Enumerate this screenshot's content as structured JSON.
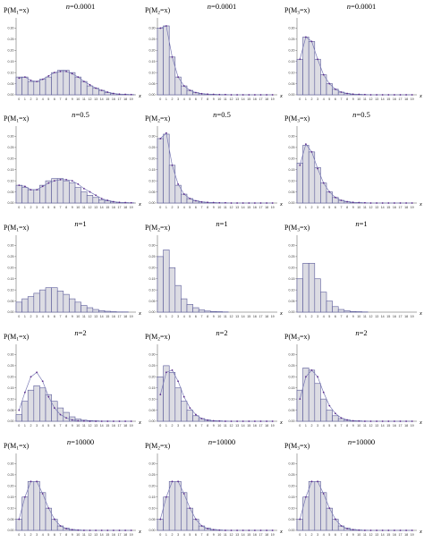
{
  "layout_grid": {
    "rows": 5,
    "cols": 3
  },
  "charts": [
    {
      "type": "bar",
      "title": "n=0.0001",
      "ylabel": "P(M1=x)",
      "xlabel": "x",
      "yticks": [
        "0.30",
        "0.25",
        "0.20",
        "0.15",
        "0.10",
        "0.05",
        "0.00"
      ],
      "ylim": [
        0,
        0.33
      ],
      "categories": [
        "0",
        "1",
        "2",
        "3",
        "4",
        "5",
        "6",
        "7",
        "8",
        "9",
        "10",
        "11",
        "12",
        "13",
        "14",
        "15",
        "16",
        "17",
        "18",
        "19"
      ],
      "values": [
        0.08,
        0.08,
        0.06,
        0.06,
        0.07,
        0.08,
        0.1,
        0.11,
        0.11,
        0.1,
        0.08,
        0.06,
        0.04,
        0.03,
        0.02,
        0.01,
        0.005,
        0.003,
        0.002,
        0.001
      ],
      "points": [
        0.075,
        0.08,
        0.065,
        0.06,
        0.07,
        0.085,
        0.1,
        0.105,
        0.105,
        0.095,
        0.08,
        0.06,
        0.045,
        0.03,
        0.02,
        0.012,
        0.006,
        0.003,
        0.002,
        0.001
      ]
    },
    {
      "type": "bar",
      "title": "n=0.0001",
      "ylabel": "P(M2=x)",
      "xlabel": "x",
      "yticks": [
        "0.30",
        "0.25",
        "0.20",
        "0.15",
        "0.10",
        "0.05",
        "0.00"
      ],
      "ylim": [
        0,
        0.33
      ],
      "categories": [
        "0",
        "1",
        "2",
        "3",
        "4",
        "5",
        "6",
        "7",
        "8",
        "9",
        "10",
        "11",
        "12",
        "13",
        "14",
        "15",
        "16",
        "17",
        "18",
        "19"
      ],
      "values": [
        0.3,
        0.31,
        0.17,
        0.08,
        0.04,
        0.02,
        0.01,
        0.005,
        0.003,
        0.002,
        0.001,
        0.001,
        0,
        0,
        0,
        0,
        0,
        0,
        0,
        0
      ],
      "points": [
        0.3,
        0.31,
        0.17,
        0.08,
        0.04,
        0.02,
        0.01,
        0.005,
        0.003,
        0.002,
        0.001,
        0.001,
        0,
        0,
        0,
        0,
        0,
        0,
        0,
        0
      ]
    },
    {
      "type": "bar",
      "title": "n=0.0001",
      "ylabel": "P(M3=x)",
      "xlabel": "x",
      "yticks": [
        "0.30",
        "0.25",
        "0.20",
        "0.15",
        "0.10",
        "0.05",
        "0.00"
      ],
      "ylim": [
        0,
        0.33
      ],
      "categories": [
        "0",
        "1",
        "2",
        "3",
        "4",
        "5",
        "6",
        "7",
        "8",
        "9",
        "10",
        "11",
        "12",
        "13",
        "14",
        "15",
        "16",
        "17",
        "18",
        "19"
      ],
      "values": [
        0.16,
        0.26,
        0.24,
        0.16,
        0.09,
        0.05,
        0.025,
        0.012,
        0.006,
        0.003,
        0.002,
        0.001,
        0,
        0,
        0,
        0,
        0,
        0,
        0,
        0
      ],
      "points": [
        0.16,
        0.26,
        0.24,
        0.16,
        0.09,
        0.05,
        0.025,
        0.012,
        0.006,
        0.003,
        0.002,
        0.001,
        0,
        0,
        0,
        0,
        0,
        0,
        0,
        0
      ]
    },
    {
      "type": "bar",
      "title": "n=0.5",
      "ylabel": "P(M1=x)",
      "xlabel": "x",
      "yticks": [
        "0.30",
        "0.25",
        "0.20",
        "0.15",
        "0.10",
        "0.05",
        "0.00"
      ],
      "ylim": [
        0,
        0.33
      ],
      "categories": [
        "0",
        "1",
        "2",
        "3",
        "4",
        "5",
        "6",
        "7",
        "8",
        "9",
        "10",
        "11",
        "12",
        "13",
        "14",
        "15",
        "16",
        "17",
        "18",
        "19"
      ],
      "values": [
        0.08,
        0.07,
        0.06,
        0.06,
        0.08,
        0.1,
        0.11,
        0.11,
        0.1,
        0.09,
        0.07,
        0.05,
        0.035,
        0.025,
        0.015,
        0.01,
        0.005,
        0.003,
        0.002,
        0.001
      ],
      "points": [
        0.08,
        0.075,
        0.06,
        0.06,
        0.075,
        0.09,
        0.1,
        0.105,
        0.105,
        0.1,
        0.085,
        0.065,
        0.05,
        0.035,
        0.02,
        0.012,
        0.006,
        0.003,
        0.002,
        0.001
      ]
    },
    {
      "type": "bar",
      "title": "n=0.5",
      "ylabel": "P(M2=x)",
      "xlabel": "x",
      "yticks": [
        "0.30",
        "0.25",
        "0.20",
        "0.15",
        "0.10",
        "0.05",
        "0.00"
      ],
      "ylim": [
        0,
        0.33
      ],
      "categories": [
        "0",
        "1",
        "2",
        "3",
        "4",
        "5",
        "6",
        "7",
        "8",
        "9",
        "10",
        "11",
        "12",
        "13",
        "14",
        "15",
        "16",
        "17",
        "18",
        "19"
      ],
      "values": [
        0.29,
        0.31,
        0.17,
        0.08,
        0.04,
        0.02,
        0.01,
        0.005,
        0.003,
        0.002,
        0.001,
        0.001,
        0,
        0,
        0,
        0,
        0,
        0,
        0,
        0
      ],
      "points": [
        0.29,
        0.315,
        0.17,
        0.085,
        0.04,
        0.02,
        0.01,
        0.005,
        0.003,
        0.002,
        0.001,
        0.001,
        0,
        0,
        0,
        0,
        0,
        0,
        0,
        0
      ]
    },
    {
      "type": "bar",
      "title": "n=0.5",
      "ylabel": "P(M3=x)",
      "xlabel": "x",
      "yticks": [
        "0.30",
        "0.25",
        "0.20",
        "0.15",
        "0.10",
        "0.05",
        "0.00"
      ],
      "ylim": [
        0,
        0.33
      ],
      "categories": [
        "0",
        "1",
        "2",
        "3",
        "4",
        "5",
        "6",
        "7",
        "8",
        "9",
        "10",
        "11",
        "12",
        "13",
        "14",
        "15",
        "16",
        "17",
        "18",
        "19"
      ],
      "values": [
        0.18,
        0.26,
        0.23,
        0.16,
        0.09,
        0.05,
        0.025,
        0.012,
        0.006,
        0.003,
        0.002,
        0.001,
        0,
        0,
        0,
        0,
        0,
        0,
        0,
        0
      ],
      "points": [
        0.17,
        0.265,
        0.23,
        0.155,
        0.09,
        0.05,
        0.025,
        0.012,
        0.006,
        0.003,
        0.002,
        0.001,
        0,
        0,
        0,
        0,
        0,
        0,
        0,
        0
      ]
    },
    {
      "type": "bar",
      "title": "n=1",
      "ylabel": "P(M1=x)",
      "xlabel": "x",
      "yticks": [
        "0.30",
        "0.25",
        "0.20",
        "0.15",
        "0.10",
        "0.05",
        "0.00"
      ],
      "ylim": [
        0,
        0.33
      ],
      "categories": [
        "0",
        "1",
        "2",
        "3",
        "4",
        "5",
        "6",
        "7",
        "8",
        "9",
        "10",
        "11",
        "12",
        "13",
        "14",
        "15",
        "16",
        "17",
        "18",
        "19"
      ],
      "values": [
        0.045,
        0.06,
        0.07,
        0.085,
        0.1,
        0.11,
        0.11,
        0.095,
        0.08,
        0.06,
        0.045,
        0.03,
        0.02,
        0.012,
        0.007,
        0.004,
        0.002,
        0.001,
        0.001,
        0
      ],
      "points": []
    },
    {
      "type": "bar",
      "title": "n=1",
      "ylabel": "P(M2=x)",
      "xlabel": "x",
      "yticks": [
        "0.30",
        "0.25",
        "0.20",
        "0.15",
        "0.10",
        "0.05",
        "0.00"
      ],
      "ylim": [
        0,
        0.33
      ],
      "categories": [
        "0",
        "1",
        "2",
        "3",
        "4",
        "5",
        "6",
        "7",
        "8",
        "9",
        "10",
        "11",
        "12",
        "13",
        "14",
        "15",
        "16",
        "17",
        "18",
        "19"
      ],
      "values": [
        0.25,
        0.28,
        0.2,
        0.12,
        0.06,
        0.035,
        0.02,
        0.01,
        0.005,
        0.003,
        0.002,
        0.001,
        0,
        0,
        0,
        0,
        0,
        0,
        0,
        0
      ],
      "points": []
    },
    {
      "type": "bar",
      "title": "n=1",
      "ylabel": "P(M3=x)",
      "xlabel": "x",
      "yticks": [
        "0.30",
        "0.25",
        "0.20",
        "0.15",
        "0.10",
        "0.05",
        "0.00"
      ],
      "ylim": [
        0,
        0.33
      ],
      "categories": [
        "0",
        "1",
        "2",
        "3",
        "4",
        "5",
        "6",
        "7",
        "8",
        "9",
        "10",
        "11",
        "12",
        "13",
        "14",
        "15",
        "16",
        "17",
        "18",
        "19"
      ],
      "values": [
        0.15,
        0.22,
        0.22,
        0.15,
        0.09,
        0.05,
        0.025,
        0.012,
        0.006,
        0.003,
        0.002,
        0.001,
        0,
        0,
        0,
        0,
        0,
        0,
        0,
        0
      ],
      "points": []
    },
    {
      "type": "bar",
      "title": "n=2",
      "ylabel": "P(M1=x)",
      "xlabel": "x",
      "yticks": [
        "0.30",
        "0.25",
        "0.20",
        "0.15",
        "0.10",
        "0.05",
        "0.00"
      ],
      "ylim": [
        0,
        0.33
      ],
      "categories": [
        "0",
        "1",
        "2",
        "3",
        "4",
        "5",
        "6",
        "7",
        "8",
        "9",
        "10",
        "11",
        "12",
        "13",
        "14",
        "15",
        "16",
        "17",
        "18",
        "19"
      ],
      "values": [
        0.03,
        0.09,
        0.14,
        0.16,
        0.15,
        0.12,
        0.09,
        0.06,
        0.04,
        0.02,
        0.01,
        0.005,
        0.003,
        0.002,
        0.001,
        0.001,
        0,
        0,
        0,
        0
      ],
      "points": [
        0.05,
        0.13,
        0.2,
        0.22,
        0.18,
        0.11,
        0.06,
        0.03,
        0.015,
        0.006,
        0.002,
        0.001,
        0,
        0,
        0,
        0,
        0,
        0,
        0,
        0
      ]
    },
    {
      "type": "bar",
      "title": "n=2",
      "ylabel": "P(M2=x)",
      "xlabel": "x",
      "yticks": [
        "0.30",
        "0.25",
        "0.20",
        "0.15",
        "0.10",
        "0.05",
        "0.00"
      ],
      "ylim": [
        0,
        0.33
      ],
      "categories": [
        "0",
        "1",
        "2",
        "3",
        "4",
        "5",
        "6",
        "7",
        "8",
        "9",
        "10",
        "11",
        "12",
        "13",
        "14",
        "15",
        "16",
        "17",
        "18",
        "19"
      ],
      "values": [
        0.2,
        0.25,
        0.22,
        0.15,
        0.09,
        0.05,
        0.025,
        0.012,
        0.006,
        0.003,
        0.002,
        0.001,
        0,
        0,
        0,
        0,
        0,
        0,
        0,
        0
      ],
      "points": [
        0.12,
        0.22,
        0.23,
        0.18,
        0.11,
        0.06,
        0.03,
        0.012,
        0.005,
        0.002,
        0.001,
        0,
        0,
        0,
        0,
        0,
        0,
        0,
        0,
        0
      ]
    },
    {
      "type": "bar",
      "title": "n=2",
      "ylabel": "P(M3=x)",
      "xlabel": "x",
      "yticks": [
        "0.30",
        "0.25",
        "0.20",
        "0.15",
        "0.10",
        "0.05",
        "0.00"
      ],
      "ylim": [
        0,
        0.33
      ],
      "categories": [
        "0",
        "1",
        "2",
        "3",
        "4",
        "5",
        "6",
        "7",
        "8",
        "9",
        "10",
        "11",
        "12",
        "13",
        "14",
        "15",
        "16",
        "17",
        "18",
        "19"
      ],
      "values": [
        0.14,
        0.24,
        0.23,
        0.17,
        0.1,
        0.05,
        0.025,
        0.012,
        0.006,
        0.003,
        0.002,
        0.001,
        0,
        0,
        0,
        0,
        0,
        0,
        0,
        0
      ],
      "points": [
        0.1,
        0.2,
        0.23,
        0.2,
        0.13,
        0.07,
        0.035,
        0.015,
        0.006,
        0.002,
        0.001,
        0,
        0,
        0,
        0,
        0,
        0,
        0,
        0,
        0
      ]
    },
    {
      "type": "bar",
      "title": "n=10000",
      "ylabel": "P(M1=x)",
      "xlabel": "x",
      "yticks": [
        "0.30",
        "0.25",
        "0.20",
        "0.15",
        "0.10",
        "0.05",
        "0.00"
      ],
      "ylim": [
        0,
        0.33
      ],
      "categories": [
        "0",
        "1",
        "2",
        "3",
        "4",
        "5",
        "6",
        "7",
        "8",
        "9",
        "10",
        "11",
        "12",
        "13",
        "14",
        "15",
        "16",
        "17",
        "18",
        "19"
      ],
      "values": [
        0.05,
        0.15,
        0.22,
        0.22,
        0.17,
        0.1,
        0.05,
        0.02,
        0.01,
        0.004,
        0.002,
        0.001,
        0,
        0,
        0,
        0,
        0,
        0,
        0,
        0
      ],
      "points": [
        0.05,
        0.15,
        0.22,
        0.22,
        0.165,
        0.1,
        0.05,
        0.02,
        0.008,
        0.003,
        0.001,
        0,
        0,
        0,
        0,
        0,
        0,
        0,
        0,
        0
      ]
    },
    {
      "type": "bar",
      "title": "n=10000",
      "ylabel": "P(M2=x)",
      "xlabel": "x",
      "yticks": [
        "0.30",
        "0.25",
        "0.20",
        "0.15",
        "0.10",
        "0.05",
        "0.00"
      ],
      "ylim": [
        0,
        0.33
      ],
      "categories": [
        "0",
        "1",
        "2",
        "3",
        "4",
        "5",
        "6",
        "7",
        "8",
        "9",
        "10",
        "11",
        "12",
        "13",
        "14",
        "15",
        "16",
        "17",
        "18",
        "19"
      ],
      "values": [
        0.05,
        0.15,
        0.22,
        0.22,
        0.17,
        0.1,
        0.05,
        0.02,
        0.01,
        0.004,
        0.002,
        0.001,
        0,
        0,
        0,
        0,
        0,
        0,
        0,
        0
      ],
      "points": [
        0.05,
        0.15,
        0.22,
        0.22,
        0.165,
        0.1,
        0.05,
        0.02,
        0.008,
        0.003,
        0.001,
        0,
        0,
        0,
        0,
        0,
        0,
        0,
        0,
        0
      ]
    },
    {
      "type": "bar",
      "title": "n=10000",
      "ylabel": "P(M3=x)",
      "xlabel": "x",
      "yticks": [
        "0.30",
        "0.25",
        "0.20",
        "0.15",
        "0.10",
        "0.05",
        "0.00"
      ],
      "ylim": [
        0,
        0.33
      ],
      "categories": [
        "0",
        "1",
        "2",
        "3",
        "4",
        "5",
        "6",
        "7",
        "8",
        "9",
        "10",
        "11",
        "12",
        "13",
        "14",
        "15",
        "16",
        "17",
        "18",
        "19"
      ],
      "values": [
        0.05,
        0.15,
        0.22,
        0.22,
        0.17,
        0.1,
        0.05,
        0.02,
        0.01,
        0.004,
        0.002,
        0.001,
        0,
        0,
        0,
        0,
        0,
        0,
        0,
        0
      ],
      "points": [
        0.05,
        0.15,
        0.22,
        0.22,
        0.165,
        0.1,
        0.05,
        0.02,
        0.008,
        0.003,
        0.001,
        0,
        0,
        0,
        0,
        0,
        0,
        0,
        0,
        0
      ]
    }
  ],
  "colors": {
    "bar_fill": "#dcdce3",
    "bar_stroke": "#5a5a9a",
    "point": "#5b2a8c",
    "curve": "#7a7ab5"
  }
}
